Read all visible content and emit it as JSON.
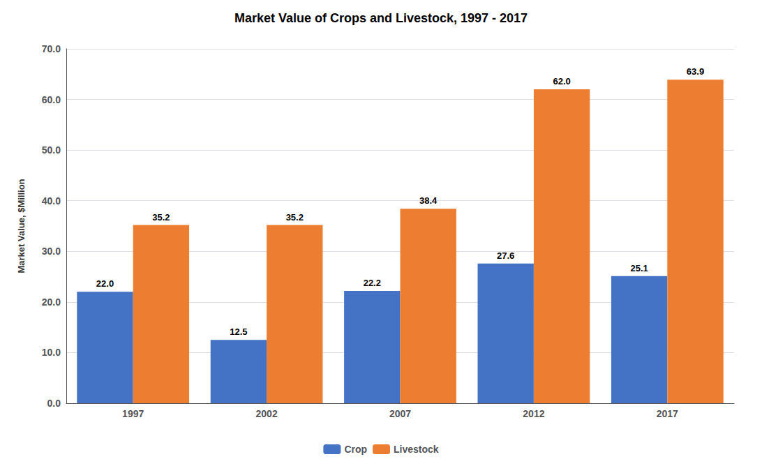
{
  "chart_data": {
    "type": "bar",
    "title": "Market Value of Crops and Livestock, 1997 - 2017",
    "ylabel": "Market Value, $Million",
    "categories": [
      "1997",
      "2002",
      "2007",
      "2012",
      "2017"
    ],
    "series": [
      {
        "name": "Crop",
        "color": "#4472C4",
        "values": [
          22.0,
          12.5,
          22.2,
          27.6,
          25.1
        ],
        "value_labels": [
          "22.0",
          "12.5",
          "22.2",
          "27.6",
          "25.1"
        ]
      },
      {
        "name": "Livestock",
        "color": "#ED7D31",
        "values": [
          35.2,
          35.2,
          38.4,
          62.0,
          63.9
        ],
        "value_labels": [
          "35.2",
          "35.2",
          "38.4",
          "62.0",
          "63.9"
        ]
      }
    ],
    "ylim": [
      0,
      70
    ],
    "yticks": [
      {
        "value": 0,
        "label": "0.0"
      },
      {
        "value": 10,
        "label": "10.0"
      },
      {
        "value": 20,
        "label": "20.0"
      },
      {
        "value": 30,
        "label": "30.0"
      },
      {
        "value": 40,
        "label": "40.0"
      },
      {
        "value": 50,
        "label": "50.0"
      },
      {
        "value": 60,
        "label": "60.0"
      },
      {
        "value": 70,
        "label": "70.0"
      }
    ],
    "grid": true,
    "legend": "bottom",
    "data_labels": true
  }
}
